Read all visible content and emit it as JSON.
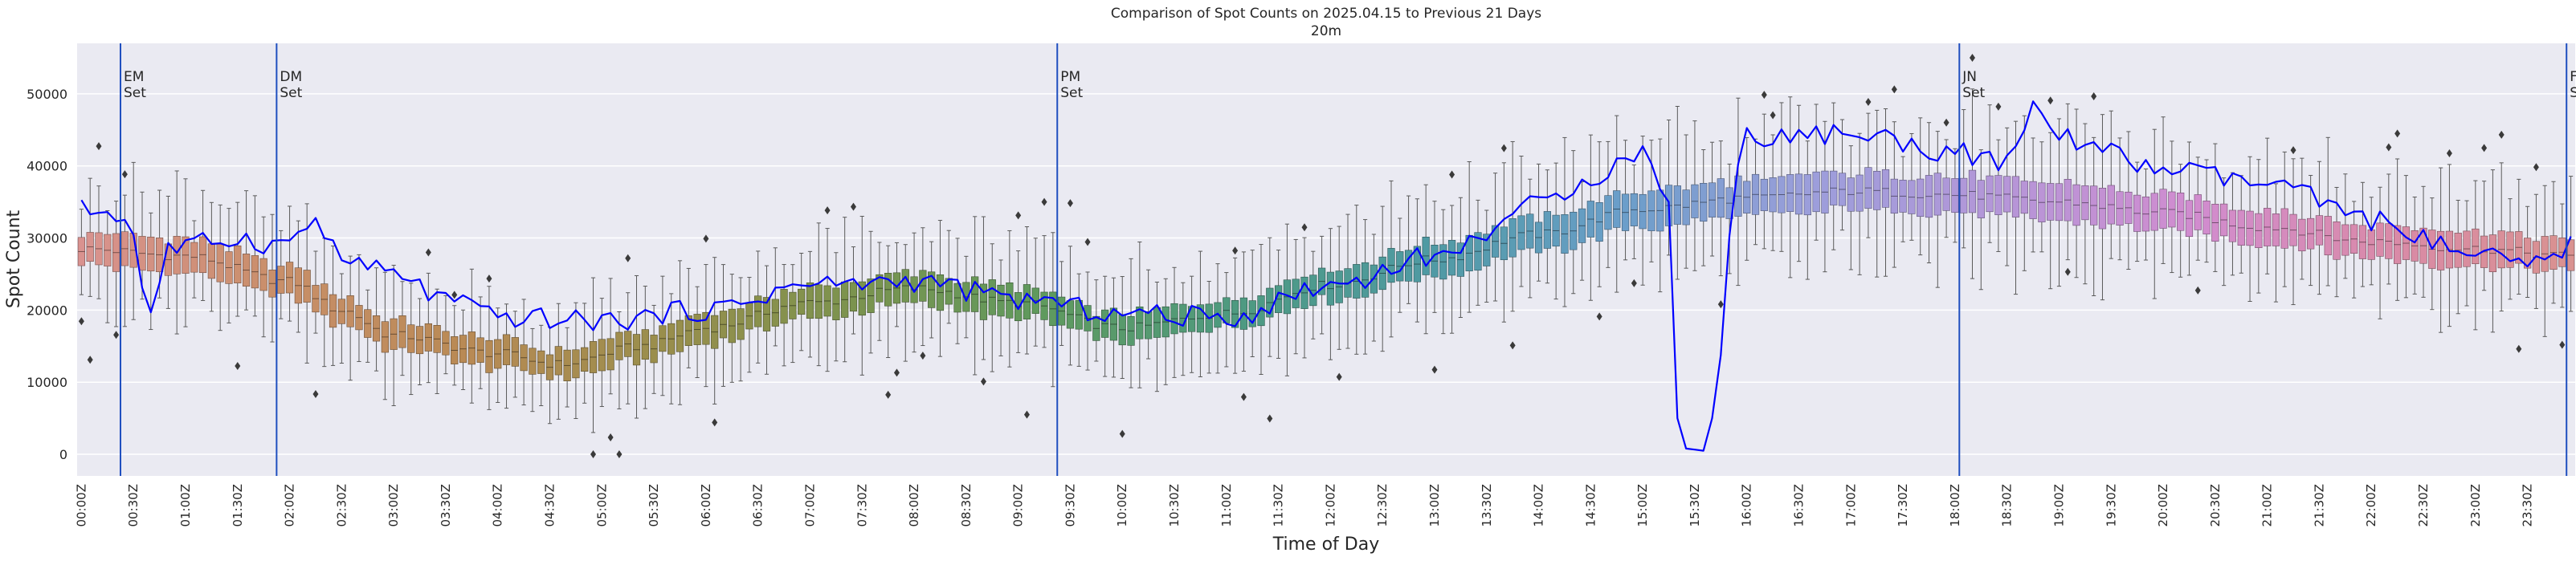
{
  "chart_data": {
    "type": "box+line",
    "title": "Comparison of Spot Counts on 2025.04.15 to Previous 21 Days",
    "subtitle": "20m",
    "xlabel": "Time of Day",
    "ylabel": "Spot Count",
    "ylim": [
      -3000,
      57000
    ],
    "yticks": [
      0,
      10000,
      20000,
      30000,
      40000,
      50000
    ],
    "ytick_labels": [
      "0",
      "10000",
      "20000",
      "30000",
      "40000",
      "50000"
    ],
    "xtick_labels": [
      "00:00Z",
      "00:30Z",
      "01:00Z",
      "01:30Z",
      "02:00Z",
      "02:30Z",
      "03:00Z",
      "03:30Z",
      "04:00Z",
      "04:30Z",
      "05:00Z",
      "05:30Z",
      "06:00Z",
      "06:30Z",
      "07:00Z",
      "07:30Z",
      "08:00Z",
      "08:30Z",
      "09:00Z",
      "09:30Z",
      "10:00Z",
      "10:30Z",
      "11:00Z",
      "11:30Z",
      "12:00Z",
      "12:30Z",
      "13:00Z",
      "13:30Z",
      "14:00Z",
      "14:30Z",
      "15:00Z",
      "15:30Z",
      "16:00Z",
      "16:30Z",
      "17:00Z",
      "17:30Z",
      "18:00Z",
      "18:30Z",
      "19:00Z",
      "19:30Z",
      "20:00Z",
      "20:30Z",
      "21:00Z",
      "21:30Z",
      "22:00Z",
      "22:30Z",
      "23:00Z",
      "23:30Z"
    ],
    "slots_per_day": 288,
    "slot_minutes": 5,
    "box_medians_keyframes": [
      [
        0,
        28500
      ],
      [
        24,
        27500
      ],
      [
        48,
        24000
      ],
      [
        60,
        20000
      ],
      [
        72,
        16500
      ],
      [
        96,
        14000
      ],
      [
        110,
        12500
      ],
      [
        130,
        15000
      ],
      [
        144,
        17500
      ],
      [
        168,
        21000
      ],
      [
        192,
        23000
      ],
      [
        216,
        21000
      ],
      [
        240,
        17500
      ],
      [
        264,
        19500
      ],
      [
        288,
        23500
      ],
      [
        312,
        27000
      ],
      [
        336,
        30500
      ],
      [
        360,
        34000
      ],
      [
        384,
        35500
      ],
      [
        408,
        36500
      ],
      [
        432,
        36000
      ],
      [
        456,
        35000
      ],
      [
        480,
        33500
      ],
      [
        504,
        31500
      ],
      [
        528,
        29500
      ],
      [
        552,
        28500
      ],
      [
        575,
        27500
      ]
    ],
    "today_line_keyframes": [
      [
        0,
        34000
      ],
      [
        8,
        33500
      ],
      [
        12,
        31000
      ],
      [
        14,
        23000
      ],
      [
        15,
        14500
      ],
      [
        16,
        20000
      ],
      [
        20,
        28500
      ],
      [
        36,
        30000
      ],
      [
        46,
        29000
      ],
      [
        50,
        30500
      ],
      [
        54,
        32500
      ],
      [
        60,
        27000
      ],
      [
        72,
        25000
      ],
      [
        84,
        21500
      ],
      [
        96,
        19000
      ],
      [
        120,
        18500
      ],
      [
        144,
        20000
      ],
      [
        168,
        23500
      ],
      [
        192,
        24000
      ],
      [
        216,
        21500
      ],
      [
        240,
        19500
      ],
      [
        264,
        19000
      ],
      [
        288,
        23500
      ],
      [
        312,
        27500
      ],
      [
        336,
        34500
      ],
      [
        348,
        38500
      ],
      [
        360,
        42000
      ],
      [
        366,
        35000
      ],
      [
        368,
        5000
      ],
      [
        370,
        800
      ],
      [
        374,
        500
      ],
      [
        376,
        5000
      ],
      [
        382,
        40000
      ],
      [
        384,
        44000
      ],
      [
        408,
        44500
      ],
      [
        432,
        42000
      ],
      [
        444,
        40000
      ],
      [
        450,
        48000
      ],
      [
        456,
        44000
      ],
      [
        480,
        39500
      ],
      [
        504,
        37500
      ],
      [
        528,
        32500
      ],
      [
        552,
        27500
      ],
      [
        564,
        26000
      ],
      [
        575,
        29000
      ]
    ],
    "set_markers": [
      {
        "time": "00:25Z",
        "slot": 5,
        "label": "EM\nSet"
      },
      {
        "time": "01:55Z",
        "slot": 23,
        "label": "DM\nSet"
      },
      {
        "time": "09:25Z",
        "slot": 113,
        "label": "PM\nSet"
      },
      {
        "time": "18:05Z",
        "slot": 217,
        "label": "JN\nSet"
      },
      {
        "time": "23:55Z",
        "slot": 287,
        "label": "FN\nSet"
      }
    ],
    "series": [
      {
        "name": "previous 21 days (boxplot)",
        "style": "box"
      },
      {
        "name": "2025.04.15",
        "style": "line",
        "color": "#0000ff"
      }
    ],
    "colors": {
      "background": "#eaeaf2",
      "grid": "#ffffff",
      "today_line": "#0000ff",
      "marker_line": "#1f4fbf",
      "whisker": "#5a5a5a",
      "flier": "#3a3a3a",
      "text": "#262626"
    }
  }
}
